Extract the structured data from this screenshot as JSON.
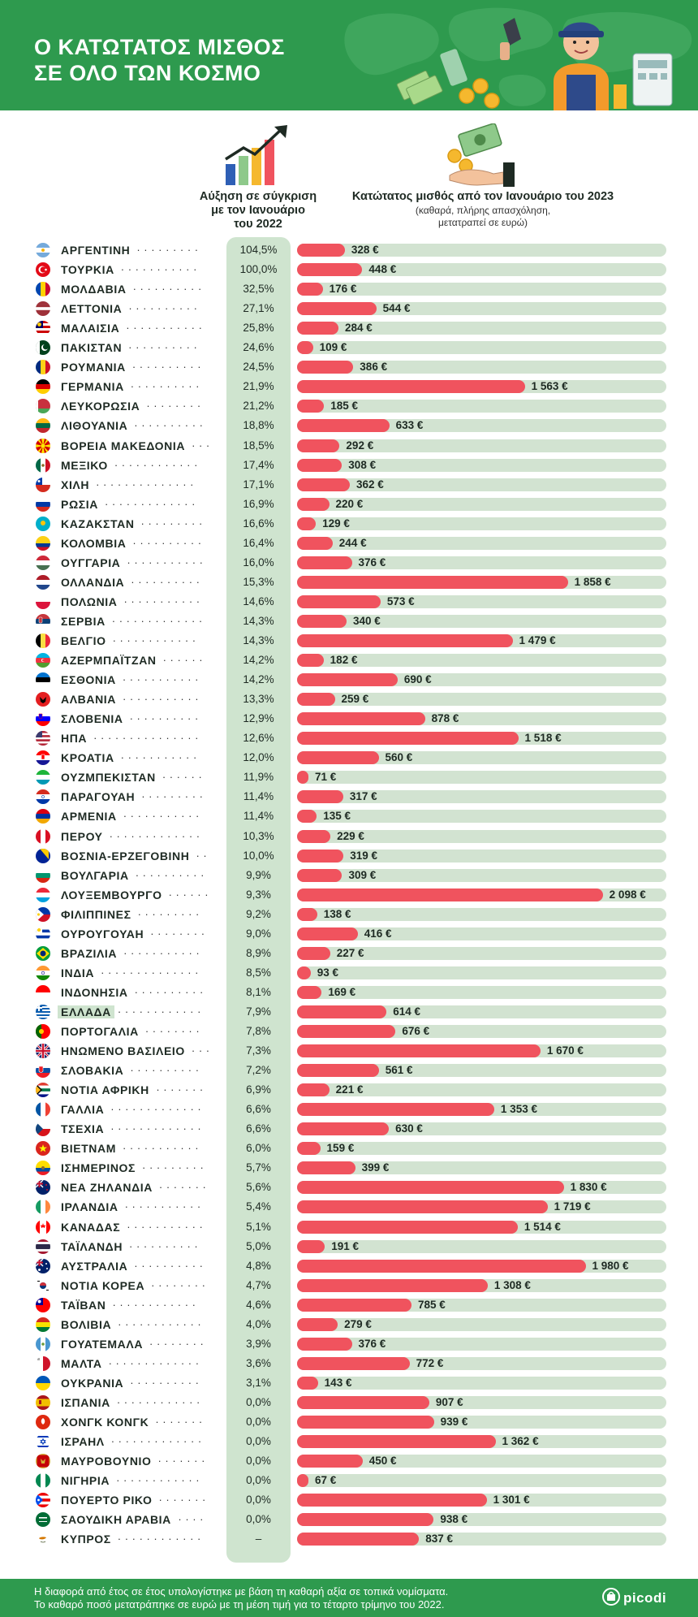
{
  "header": {
    "title_line1": "Ο ΚΑΤΩΤΑΤΟΣ ΜΙΣΘΟΣ",
    "title_line2": "ΣΕ ΟΛΟ ΤΩΝ ΚΟΣΜΟ"
  },
  "columns": {
    "growth_head": [
      "Αύξηση σε σύγκριση",
      "με τον Ιανουάριο",
      "του 2022"
    ],
    "wage_head": "Κατώτατος μισθός από τον Ιανουάριο του 2023",
    "wage_sub": [
      "(καθαρά, πλήρης απασχόληση,",
      "μετατραπεί σε ευρώ)"
    ]
  },
  "highlighted_country": "ΕΛΛΑΔΑ",
  "footer": {
    "note_line1": "Η διαφορά από έτος σε έτος υπολογίστηκε με βάση τη καθαρή αξία σε τοπικά νομίσματα.",
    "note_line2": "Το καθαρό ποσό μετατράπηκε σε ευρώ με τη μέση τιμή για το τέταρτο τρίμηνο του 2022.",
    "brand": "picodi"
  },
  "colors": {
    "green": "#2e9a4e",
    "light_green": "#cfe4cf",
    "bar_red": "#f0535e",
    "track": "#d2e3d1"
  },
  "chart_data": {
    "type": "bar",
    "orientation": "horizontal",
    "xlim": [
      0,
      2200
    ],
    "unit": "€",
    "rows": [
      {
        "country": "ΑΡΓΕΝΤΙΝΗ",
        "growth": "104,5%",
        "wage": 328,
        "wage_label": "328 €",
        "flag": "argentina-flag-icon"
      },
      {
        "country": "ΤΟΥΡΚΙΑ",
        "growth": "100,0%",
        "wage": 448,
        "wage_label": "448 €",
        "flag": "turkey-flag-icon"
      },
      {
        "country": "ΜΟΛΔΑΒΙΑ",
        "growth": "32,5%",
        "wage": 176,
        "wage_label": "176 €",
        "flag": "moldova-flag-icon"
      },
      {
        "country": "ΛΕΤΤΟΝΙΑ",
        "growth": "27,1%",
        "wage": 544,
        "wage_label": "544 €",
        "flag": "latvia-flag-icon"
      },
      {
        "country": "ΜΑΛΑΙΣΙΑ",
        "growth": "25,8%",
        "wage": 284,
        "wage_label": "284 €",
        "flag": "malaysia-flag-icon"
      },
      {
        "country": "ΠΑΚΙΣΤΑΝ",
        "growth": "24,6%",
        "wage": 109,
        "wage_label": "109 €",
        "flag": "pakistan-flag-icon"
      },
      {
        "country": "ΡΟΥΜΑΝΙΑ",
        "growth": "24,5%",
        "wage": 386,
        "wage_label": "386 €",
        "flag": "romania-flag-icon"
      },
      {
        "country": "ΓΕΡΜΑΝΙΑ",
        "growth": "21,9%",
        "wage": 1563,
        "wage_label": "1 563 €",
        "flag": "germany-flag-icon"
      },
      {
        "country": "ΛΕΥΚΟΡΩΣΙΑ",
        "growth": "21,2%",
        "wage": 185,
        "wage_label": "185 €",
        "flag": "belarus-flag-icon"
      },
      {
        "country": "ΛΙΘΟΥΑΝΙΑ",
        "growth": "18,8%",
        "wage": 633,
        "wage_label": "633 €",
        "flag": "lithuania-flag-icon"
      },
      {
        "country": "ΒΟΡΕΙΑ ΜΑΚΕΔΟΝΙΑ",
        "growth": "18,5%",
        "wage": 292,
        "wage_label": "292 €",
        "flag": "north-macedonia-flag-icon"
      },
      {
        "country": "ΜΕΞΙΚΟ",
        "growth": "17,4%",
        "wage": 308,
        "wage_label": "308 €",
        "flag": "mexico-flag-icon"
      },
      {
        "country": "ΧΙΛΗ",
        "growth": "17,1%",
        "wage": 362,
        "wage_label": "362 €",
        "flag": "chile-flag-icon"
      },
      {
        "country": "ΡΩΣΙΑ",
        "growth": "16,9%",
        "wage": 220,
        "wage_label": "220 €",
        "flag": "russia-flag-icon"
      },
      {
        "country": "ΚΑΖΑΚΣΤΑΝ",
        "growth": "16,6%",
        "wage": 129,
        "wage_label": "129 €",
        "flag": "kazakhstan-flag-icon"
      },
      {
        "country": "ΚΟΛΟΜΒΙΑ",
        "growth": "16,4%",
        "wage": 244,
        "wage_label": "244 €",
        "flag": "colombia-flag-icon"
      },
      {
        "country": "ΟΥΓΓΑΡΙΑ",
        "growth": "16,0%",
        "wage": 376,
        "wage_label": "376 €",
        "flag": "hungary-flag-icon"
      },
      {
        "country": "ΟΛΛΑΝΔΙΑ",
        "growth": "15,3%",
        "wage": 1858,
        "wage_label": "1 858 €",
        "flag": "netherlands-flag-icon"
      },
      {
        "country": "ΠΟΛΩΝΙΑ",
        "growth": "14,6%",
        "wage": 573,
        "wage_label": "573 €",
        "flag": "poland-flag-icon"
      },
      {
        "country": "ΣΕΡΒΙΑ",
        "growth": "14,3%",
        "wage": 340,
        "wage_label": "340 €",
        "flag": "serbia-flag-icon"
      },
      {
        "country": "ΒΕΛΓΙΟ",
        "growth": "14,3%",
        "wage": 1479,
        "wage_label": "1 479 €",
        "flag": "belgium-flag-icon"
      },
      {
        "country": "ΑΖΕΡΜΠΑΪΤΖΑΝ",
        "growth": "14,2%",
        "wage": 182,
        "wage_label": "182 €",
        "flag": "azerbaijan-flag-icon"
      },
      {
        "country": "ΕΣΘΟΝΙΑ",
        "growth": "14,2%",
        "wage": 690,
        "wage_label": "690 €",
        "flag": "estonia-flag-icon"
      },
      {
        "country": "ΑΛΒΑΝΙΑ",
        "growth": "13,3%",
        "wage": 259,
        "wage_label": "259 €",
        "flag": "albania-flag-icon"
      },
      {
        "country": "ΣΛΟΒΕΝΙΑ",
        "growth": "12,9%",
        "wage": 878,
        "wage_label": "878 €",
        "flag": "slovenia-flag-icon"
      },
      {
        "country": "ΗΠΑ",
        "growth": "12,6%",
        "wage": 1518,
        "wage_label": "1 518 €",
        "flag": "usa-flag-icon"
      },
      {
        "country": "ΚΡΟΑΤΙΑ",
        "growth": "12,0%",
        "wage": 560,
        "wage_label": "560 €",
        "flag": "croatia-flag-icon"
      },
      {
        "country": "ΟΥΖΜΠΕΚΙΣΤΑΝ",
        "growth": "11,9%",
        "wage": 71,
        "wage_label": "71 €",
        "flag": "uzbekistan-flag-icon"
      },
      {
        "country": "ΠΑΡΑΓΟΥΑΗ",
        "growth": "11,4%",
        "wage": 317,
        "wage_label": "317 €",
        "flag": "paraguay-flag-icon"
      },
      {
        "country": "ΑΡΜΕΝΙΑ",
        "growth": "11,4%",
        "wage": 135,
        "wage_label": "135 €",
        "flag": "armenia-flag-icon"
      },
      {
        "country": "ΠΕΡΟΥ",
        "growth": "10,3%",
        "wage": 229,
        "wage_label": "229 €",
        "flag": "peru-flag-icon"
      },
      {
        "country": "ΒΟΣΝΙΑ-ΕΡΖΕΓΟΒΙΝΗ",
        "growth": "10,0%",
        "wage": 319,
        "wage_label": "319 €",
        "flag": "bosnia-flag-icon"
      },
      {
        "country": "ΒΟΥΛΓΑΡΙΑ",
        "growth": "9,9%",
        "wage": 309,
        "wage_label": "309 €",
        "flag": "bulgaria-flag-icon"
      },
      {
        "country": "ΛΟΥΞΕΜΒΟΥΡΓΟ",
        "growth": "9,3%",
        "wage": 2098,
        "wage_label": "2 098 €",
        "flag": "luxembourg-flag-icon"
      },
      {
        "country": "ΦΙΛΙΠΠΙΝΕΣ",
        "growth": "9,2%",
        "wage": 138,
        "wage_label": "138 €",
        "flag": "philippines-flag-icon"
      },
      {
        "country": "ΟΥΡΟΥΓΟΥΑΗ",
        "growth": "9,0%",
        "wage": 416,
        "wage_label": "416 €",
        "flag": "uruguay-flag-icon"
      },
      {
        "country": "ΒΡΑΖΙΛΙΑ",
        "growth": "8,9%",
        "wage": 227,
        "wage_label": "227 €",
        "flag": "brazil-flag-icon"
      },
      {
        "country": "ΙΝΔΙΑ",
        "growth": "8,5%",
        "wage": 93,
        "wage_label": "93 €",
        "flag": "india-flag-icon"
      },
      {
        "country": "ΙΝΔΟΝΗΣΙΑ",
        "growth": "8,1%",
        "wage": 169,
        "wage_label": "169 €",
        "flag": "indonesia-flag-icon"
      },
      {
        "country": "ΕΛΛΑΔΑ",
        "growth": "7,9%",
        "wage": 614,
        "wage_label": "614 €",
        "flag": "greece-flag-icon"
      },
      {
        "country": "ΠΟΡΤΟΓΑΛΙΑ",
        "growth": "7,8%",
        "wage": 676,
        "wage_label": "676 €",
        "flag": "portugal-flag-icon"
      },
      {
        "country": "ΗΝΩΜΕΝΟ ΒΑΣΙΛΕΙΟ",
        "growth": "7,3%",
        "wage": 1670,
        "wage_label": "1 670 €",
        "flag": "uk-flag-icon"
      },
      {
        "country": "ΣΛΟΒΑΚΙΑ",
        "growth": "7,2%",
        "wage": 561,
        "wage_label": "561 €",
        "flag": "slovakia-flag-icon"
      },
      {
        "country": "ΝΟΤΙΑ ΑΦΡΙΚΗ",
        "growth": "6,9%",
        "wage": 221,
        "wage_label": "221 €",
        "flag": "south-africa-flag-icon"
      },
      {
        "country": "ΓΑΛΛΙΑ",
        "growth": "6,6%",
        "wage": 1353,
        "wage_label": "1 353 €",
        "flag": "france-flag-icon"
      },
      {
        "country": "ΤΣΕΧΙΑ",
        "growth": "6,6%",
        "wage": 630,
        "wage_label": "630 €",
        "flag": "czechia-flag-icon"
      },
      {
        "country": "ΒΙΕΤΝΑΜ",
        "growth": "6,0%",
        "wage": 159,
        "wage_label": "159 €",
        "flag": "vietnam-flag-icon"
      },
      {
        "country": "ΙΣΗΜΕΡΙΝΟΣ",
        "growth": "5,7%",
        "wage": 399,
        "wage_label": "399 €",
        "flag": "ecuador-flag-icon"
      },
      {
        "country": "ΝΕΑ ΖΗΛΑΝΔΙΑ",
        "growth": "5,6%",
        "wage": 1830,
        "wage_label": "1 830 €",
        "flag": "new-zealand-flag-icon"
      },
      {
        "country": "ΙΡΛΑΝΔΙΑ",
        "growth": "5,4%",
        "wage": 1719,
        "wage_label": "1 719 €",
        "flag": "ireland-flag-icon"
      },
      {
        "country": "ΚΑΝΑΔΑΣ",
        "growth": "5,1%",
        "wage": 1514,
        "wage_label": "1 514 €",
        "flag": "canada-flag-icon"
      },
      {
        "country": "ΤΑΪΛΑΝΔΗ",
        "growth": "5,0%",
        "wage": 191,
        "wage_label": "191 €",
        "flag": "thailand-flag-icon"
      },
      {
        "country": "ΑΥΣΤΡΑΛΙΑ",
        "growth": "4,8%",
        "wage": 1980,
        "wage_label": "1 980 €",
        "flag": "australia-flag-icon"
      },
      {
        "country": "ΝΟΤΙΑ ΚΟΡΕΑ",
        "growth": "4,7%",
        "wage": 1308,
        "wage_label": "1 308 €",
        "flag": "south-korea-flag-icon"
      },
      {
        "country": "ΤΑΪΒΑΝ",
        "growth": "4,6%",
        "wage": 785,
        "wage_label": "785 €",
        "flag": "taiwan-flag-icon"
      },
      {
        "country": "ΒΟΛΙΒΙΑ",
        "growth": "4,0%",
        "wage": 279,
        "wage_label": "279 €",
        "flag": "bolivia-flag-icon"
      },
      {
        "country": "ΓΟΥΑΤΕΜΑΛΑ",
        "growth": "3,9%",
        "wage": 376,
        "wage_label": "376 €",
        "flag": "guatemala-flag-icon"
      },
      {
        "country": "ΜΑΛΤΑ",
        "growth": "3,6%",
        "wage": 772,
        "wage_label": "772 €",
        "flag": "malta-flag-icon"
      },
      {
        "country": "ΟΥΚΡΑΝΙΑ",
        "growth": "3,1%",
        "wage": 143,
        "wage_label": "143 €",
        "flag": "ukraine-flag-icon"
      },
      {
        "country": "ΙΣΠΑΝΙΑ",
        "growth": "0,0%",
        "wage": 907,
        "wage_label": "907 €",
        "flag": "spain-flag-icon"
      },
      {
        "country": "ΧΟΝΓΚ ΚΟΝΓΚ",
        "growth": "0,0%",
        "wage": 939,
        "wage_label": "939 €",
        "flag": "hong-kong-flag-icon"
      },
      {
        "country": "ΙΣΡΑΗΛ",
        "growth": "0,0%",
        "wage": 1362,
        "wage_label": "1 362 €",
        "flag": "israel-flag-icon"
      },
      {
        "country": "ΜΑΥΡΟΒΟΥΝΙΟ",
        "growth": "0,0%",
        "wage": 450,
        "wage_label": "450 €",
        "flag": "montenegro-flag-icon"
      },
      {
        "country": "ΝΙΓΗΡΙΑ",
        "growth": "0,0%",
        "wage": 67,
        "wage_label": "67 €",
        "flag": "nigeria-flag-icon"
      },
      {
        "country": "ΠΟΥΕΡΤΟ ΡΙΚΟ",
        "growth": "0,0%",
        "wage": 1301,
        "wage_label": "1 301 €",
        "flag": "puerto-rico-flag-icon"
      },
      {
        "country": "ΣΑΟΥΔΙΚΗ ΑΡΑΒΙΑ",
        "growth": "0,0%",
        "wage": 938,
        "wage_label": "938 €",
        "flag": "saudi-arabia-flag-icon"
      },
      {
        "country": "ΚΥΠΡΟΣ",
        "growth": "–",
        "wage": 837,
        "wage_label": "837 €",
        "flag": "cyprus-flag-icon"
      }
    ]
  }
}
